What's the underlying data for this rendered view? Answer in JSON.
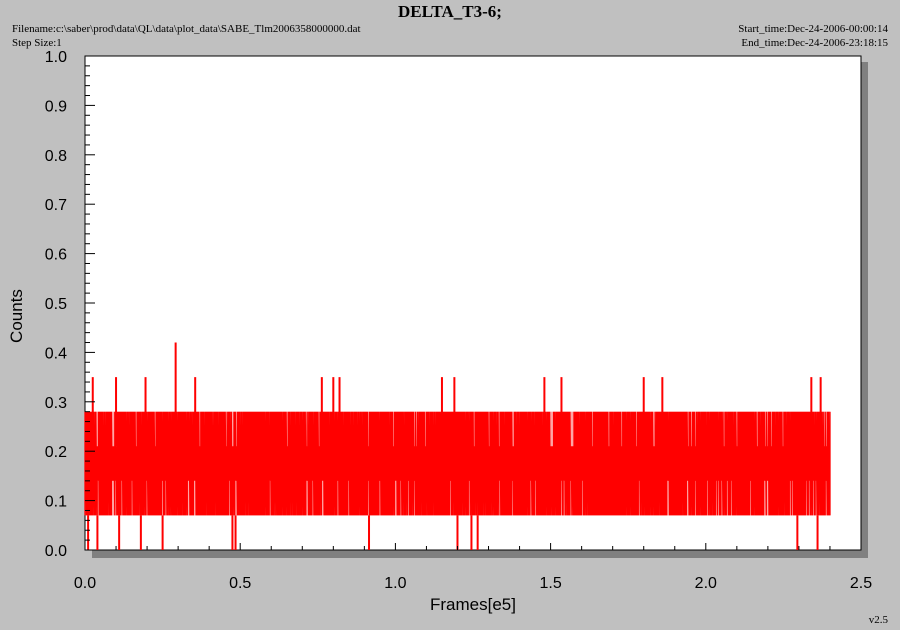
{
  "header": {
    "title": "DELTA_T3-6;",
    "filename": "Filename:c:\\saber\\prod\\data\\QL\\data\\plot_data\\SABE_Tlm2006358000000.dat",
    "step_size": "Step Size:1",
    "start_time": "Start_time:Dec-24-2006-00:00:14",
    "end_time": "End_time:Dec-24-2006-23:18:15",
    "version": "v2.5"
  },
  "colors": {
    "background": "#c0c0c0",
    "plot_area": "#ffffff",
    "shadow": "#808080",
    "series": "#ff0000"
  },
  "chart_data": {
    "type": "line",
    "title": "DELTA_T3-6;",
    "xlabel": "Frames[e5]",
    "ylabel": "Counts",
    "xlim": [
      0.0,
      2.5
    ],
    "ylim": [
      0.0,
      1.0
    ],
    "x_ticks": [
      "0.0",
      "0.5",
      "1.0",
      "1.5",
      "2.0",
      "2.5"
    ],
    "y_ticks": [
      "0.0",
      "0.1",
      "0.2",
      "0.3",
      "0.4",
      "0.5",
      "0.6",
      "0.7",
      "0.8",
      "0.9",
      "1.0"
    ],
    "grid": false,
    "series": [
      {
        "x_range": [
          0.0,
          2.4
        ],
        "typical_min": 0.07,
        "typical_max": 0.28,
        "baseline": 0.21,
        "spikes": [
          {
            "x": 0.025,
            "y": 0.35
          },
          {
            "x": 0.1,
            "y": 0.35
          },
          {
            "x": 0.195,
            "y": 0.35
          },
          {
            "x": 0.292,
            "y": 0.42
          },
          {
            "x": 0.355,
            "y": 0.35
          },
          {
            "x": 0.763,
            "y": 0.35
          },
          {
            "x": 0.8,
            "y": 0.35
          },
          {
            "x": 0.82,
            "y": 0.35
          },
          {
            "x": 1.15,
            "y": 0.35
          },
          {
            "x": 1.19,
            "y": 0.35
          },
          {
            "x": 1.48,
            "y": 0.35
          },
          {
            "x": 1.535,
            "y": 0.35
          },
          {
            "x": 1.8,
            "y": 0.35
          },
          {
            "x": 1.86,
            "y": 0.35
          },
          {
            "x": 2.34,
            "y": 0.35
          },
          {
            "x": 2.37,
            "y": 0.35
          }
        ],
        "drops": [
          {
            "x": 0.01,
            "y": 0.0
          },
          {
            "x": 0.04,
            "y": 0.0
          },
          {
            "x": 0.11,
            "y": 0.0
          },
          {
            "x": 0.18,
            "y": 0.0
          },
          {
            "x": 0.25,
            "y": 0.0
          },
          {
            "x": 0.475,
            "y": 0.0
          },
          {
            "x": 0.485,
            "y": 0.0
          },
          {
            "x": 0.915,
            "y": 0.0
          },
          {
            "x": 1.2,
            "y": 0.0
          },
          {
            "x": 1.245,
            "y": 0.0
          },
          {
            "x": 1.265,
            "y": 0.0
          },
          {
            "x": 2.295,
            "y": 0.0
          },
          {
            "x": 2.36,
            "y": 0.0
          }
        ]
      }
    ]
  }
}
